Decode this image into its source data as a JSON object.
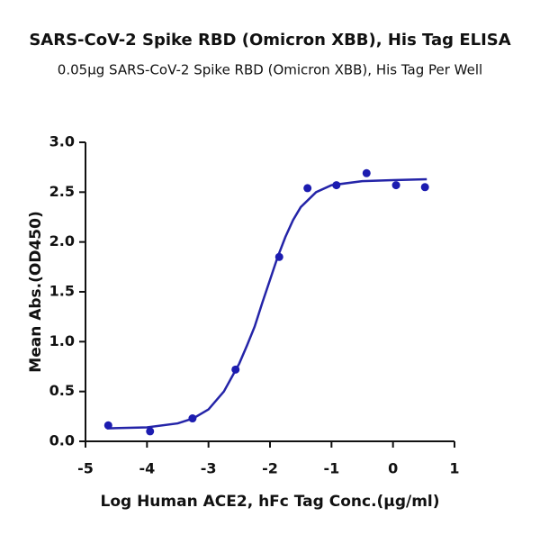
{
  "chart_data": {
    "type": "scatter",
    "title": "SARS-CoV-2 Spike RBD (Omicron XBB), His Tag ELISA",
    "subtitle": "0.05μg SARS-CoV-2 Spike RBD (Omicron XBB), His Tag Per Well",
    "x_label": "Log Human ACE2, hFc Tag Conc.(μg/ml)",
    "y_label": "Mean Abs.(OD450)",
    "xlim": [
      -5,
      1
    ],
    "xticks": [
      -5,
      -4,
      -3,
      -2,
      -1,
      0,
      1
    ],
    "ylim": [
      0,
      3
    ],
    "yticks": [
      {
        "value": 0,
        "label": "0.0"
      },
      0.5,
      {
        "value": 1,
        "label": "1.0"
      },
      1.5,
      {
        "value": 2,
        "label": "2.0"
      },
      2.5,
      {
        "value": 3,
        "label": "3.0"
      }
    ],
    "points": {
      "color": "#1c1cb0",
      "x": [
        -4.63,
        -3.95,
        -3.26,
        -2.56,
        -1.85,
        -1.39,
        -0.92,
        -0.43,
        0.05,
        0.52
      ],
      "values": [
        0.16,
        0.1,
        0.23,
        0.72,
        1.85,
        2.54,
        2.57,
        2.69,
        2.57,
        2.55
      ]
    },
    "curve": {
      "color": "#2424a8",
      "x": [
        -4.65,
        -4.0,
        -3.5,
        -3.25,
        -3.0,
        -2.75,
        -2.5,
        -2.375,
        -2.25,
        -2.125,
        -2.0,
        -1.875,
        -1.75,
        -1.625,
        -1.5,
        -1.25,
        -1.0,
        -0.5,
        0.0,
        0.55
      ],
      "values": [
        0.13,
        0.14,
        0.18,
        0.23,
        0.32,
        0.5,
        0.78,
        0.96,
        1.15,
        1.39,
        1.62,
        1.85,
        2.05,
        2.22,
        2.35,
        2.5,
        2.57,
        2.61,
        2.62,
        2.63
      ]
    }
  }
}
